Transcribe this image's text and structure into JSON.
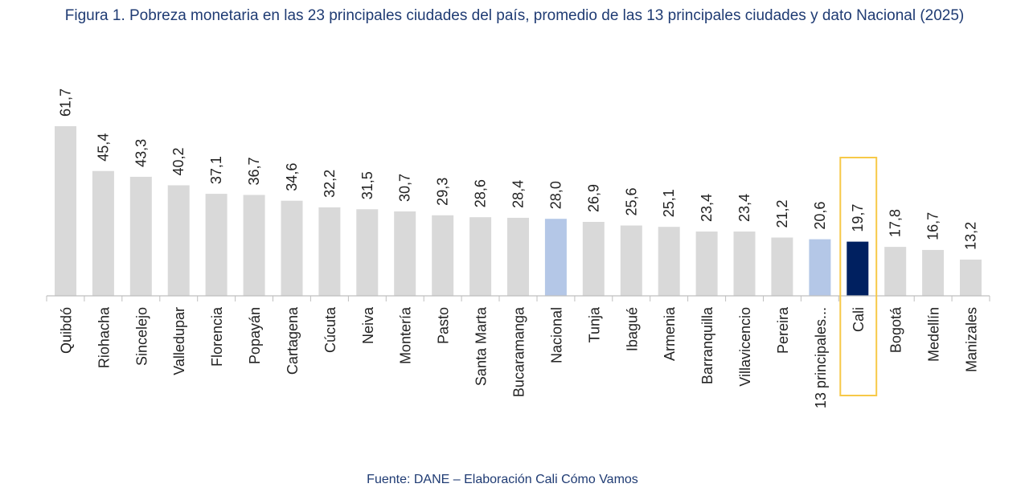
{
  "chart_data": {
    "type": "bar",
    "title": "Figura 1. Pobreza monetaria en las 23 principales ciudades del país, promedio de las 13 principales ciudades y dato Nacional (2025)",
    "source": "Fuente: DANE – Elaboración Cali Cómo Vamos",
    "xlabel": "",
    "ylabel": "",
    "ylim": [
      0,
      62
    ],
    "grid": false,
    "categories": [
      "Quibdó",
      "Riohacha",
      "Sincelejo",
      "Valledupar",
      "Florencia",
      "Popayán",
      "Cartagena",
      "Cúcuta",
      "Neiva",
      "Montería",
      "Pasto",
      "Santa Marta",
      "Bucaramanga",
      "Nacional",
      "Tunja",
      "Ibagué",
      "Armenia",
      "Barranquilla",
      "Villavicencio",
      "Pereira",
      "13 principales...",
      "Cali",
      "Bogotá",
      "Medellín",
      "Manizales"
    ],
    "values": [
      61.7,
      45.4,
      43.3,
      40.2,
      37.1,
      36.7,
      34.6,
      32.2,
      31.5,
      30.7,
      29.3,
      28.6,
      28.4,
      28.0,
      26.9,
      25.6,
      25.1,
      23.4,
      23.4,
      21.2,
      20.6,
      19.7,
      17.8,
      16.7,
      13.2
    ],
    "value_labels": [
      "61,7",
      "45,4",
      "43,3",
      "40,2",
      "37,1",
      "36,7",
      "34,6",
      "32,2",
      "31,5",
      "30,7",
      "29,3",
      "28,6",
      "28,4",
      "28,0",
      "26,9",
      "25,6",
      "25,1",
      "23,4",
      "23,4",
      "21,2",
      "20,6",
      "19,7",
      "17,8",
      "16,7",
      "13,2"
    ],
    "bar_colors": [
      "#d9d9d9",
      "#d9d9d9",
      "#d9d9d9",
      "#d9d9d9",
      "#d9d9d9",
      "#d9d9d9",
      "#d9d9d9",
      "#d9d9d9",
      "#d9d9d9",
      "#d9d9d9",
      "#d9d9d9",
      "#d9d9d9",
      "#d9d9d9",
      "#b4c7e7",
      "#d9d9d9",
      "#d9d9d9",
      "#d9d9d9",
      "#d9d9d9",
      "#d9d9d9",
      "#d9d9d9",
      "#b4c7e7",
      "#002060",
      "#d9d9d9",
      "#d9d9d9",
      "#d9d9d9"
    ],
    "highlight_category": "Cali",
    "highlight_color": "#f7c948",
    "axis_color": "#bfbfbf",
    "text_color": "#1f3b73"
  }
}
